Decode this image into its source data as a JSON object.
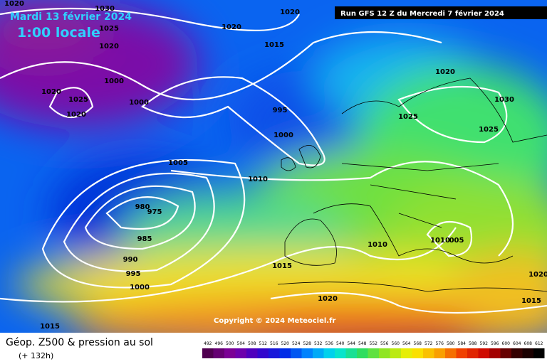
{
  "header": {
    "valid_date": "Mardi 13 février 2024",
    "local_time": "1:00 locale",
    "run": "Run GFS 12 Z du Mercredi 7 février 2024"
  },
  "map": {
    "isobar_labels": [
      "1020",
      "1030",
      "1025",
      "1020",
      "1020",
      "1020",
      "1015",
      "1000",
      "1020",
      "1025",
      "1000",
      "1020",
      "995",
      "1000",
      "1020",
      "1030",
      "1025",
      "1025",
      "1005",
      "1010",
      "980",
      "975",
      "985",
      "990",
      "995",
      "1000",
      "1010",
      "1010",
      "005",
      "1015",
      "1020",
      "1020",
      "1015",
      "1015"
    ],
    "copyright": "Copyright © 2024 Meteociel.fr"
  },
  "footer": {
    "title": "Géop. Z500 & pression au sol",
    "lead": "(+ 132h)",
    "scale": [
      492,
      496,
      500,
      504,
      508,
      512,
      516,
      520,
      524,
      528,
      532,
      536,
      540,
      544,
      548,
      552,
      556,
      560,
      564,
      568,
      572,
      576,
      580,
      584,
      588,
      592,
      596,
      600,
      604,
      608,
      612
    ]
  }
}
